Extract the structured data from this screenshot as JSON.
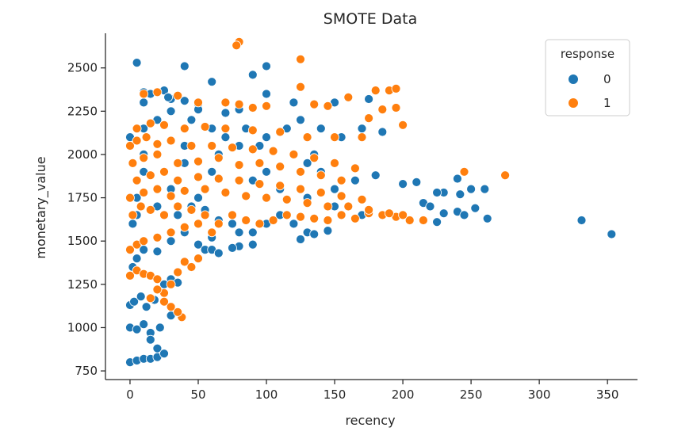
{
  "chart_data": {
    "type": "scatter",
    "title": "SMOTE Data",
    "xlabel": "recency",
    "ylabel": "monetary_value",
    "xlim": [
      -18,
      372
    ],
    "ylim": [
      700,
      2700
    ],
    "xticks": [
      0,
      50,
      100,
      150,
      200,
      250,
      300,
      350
    ],
    "yticks": [
      750,
      1000,
      1250,
      1500,
      1750,
      2000,
      2250,
      2500
    ],
    "grid": false,
    "legend": {
      "title": "response",
      "placement": "top-right"
    },
    "colors": {
      "0": "#1f77b4",
      "1": "#ff7f0e"
    },
    "series": [
      {
        "name": "0",
        "color": "#1f77b4",
        "x": [
          0,
          5,
          10,
          15,
          20,
          20,
          0,
          5,
          10,
          15,
          22,
          25,
          0,
          3,
          8,
          12,
          18,
          25,
          30,
          35,
          0,
          2,
          5,
          10,
          30,
          40,
          50,
          55,
          60,
          2,
          5,
          20,
          35,
          45,
          55,
          65,
          75,
          80,
          90,
          100,
          110,
          120,
          130,
          5,
          30,
          50,
          70,
          90,
          110,
          130,
          150,
          170,
          10,
          40,
          60,
          80,
          100,
          130,
          140,
          150,
          165,
          10,
          40,
          65,
          80,
          95,
          120,
          135,
          150,
          165,
          180,
          0,
          10,
          20,
          30,
          45,
          60,
          70,
          85,
          100,
          115,
          125,
          140,
          155,
          170,
          185,
          10,
          30,
          50,
          80,
          100,
          120,
          150,
          175,
          200,
          210,
          215,
          225,
          230,
          240,
          242,
          250,
          253,
          260,
          262,
          240,
          230,
          245,
          331,
          353,
          220,
          225,
          10,
          25,
          40,
          60,
          70,
          90,
          100,
          5,
          15,
          28,
          50,
          30,
          25,
          15,
          60,
          80,
          65,
          75,
          90,
          125,
          135,
          145,
          40,
          50,
          20
        ],
        "y": [
          800,
          810,
          820,
          820,
          830,
          880,
          1000,
          990,
          1020,
          970,
          1000,
          850,
          1130,
          1150,
          1180,
          1120,
          1160,
          1250,
          1280,
          1260,
          1300,
          1350,
          1400,
          1450,
          1500,
          1550,
          1480,
          1450,
          1520,
          1600,
          1650,
          1700,
          1650,
          1700,
          1680,
          1620,
          1600,
          1550,
          1550,
          1600,
          1650,
          1600,
          1550,
          1750,
          1800,
          1750,
          1780,
          1850,
          1800,
          1750,
          1700,
          1650,
          1900,
          1950,
          1900,
          1850,
          1900,
          1950,
          1900,
          1800,
          1850,
          2000,
          2050,
          2000,
          2050,
          2050,
          2000,
          2000,
          1950,
          1920,
          1880,
          2100,
          2150,
          2200,
          2250,
          2200,
          2150,
          2100,
          2150,
          2100,
          2150,
          2200,
          2150,
          2100,
          2150,
          2130,
          2300,
          2320,
          2280,
          2260,
          2350,
          2300,
          2300,
          2320,
          1830,
          1840,
          1720,
          1610,
          1780,
          1670,
          1770,
          1800,
          1690,
          1800,
          1630,
          1860,
          1660,
          1650,
          1620,
          1540,
          1700,
          1780,
          2360,
          2370,
          2510,
          2420,
          2240,
          2460,
          2510,
          2530,
          2350,
          2330,
          2290,
          1070,
          1200,
          930,
          1450,
          1470,
          1430,
          1460,
          1480,
          1510,
          1540,
          1560,
          2310,
          2260,
          1440
        ]
      },
      {
        "name": "1",
        "color": "#ff7f0e",
        "x": [
          0,
          5,
          10,
          15,
          20,
          25,
          30,
          35,
          40,
          45,
          50,
          0,
          5,
          10,
          20,
          30,
          40,
          50,
          60,
          2,
          8,
          15,
          25,
          35,
          45,
          55,
          65,
          75,
          85,
          95,
          105,
          115,
          125,
          135,
          145,
          155,
          165,
          175,
          185,
          195,
          205,
          215,
          0,
          10,
          20,
          30,
          40,
          55,
          70,
          85,
          100,
          115,
          130,
          145,
          160,
          175,
          190,
          200,
          5,
          15,
          25,
          35,
          50,
          65,
          80,
          95,
          110,
          125,
          140,
          155,
          170,
          2,
          10,
          20,
          35,
          50,
          65,
          80,
          95,
          110,
          125,
          140,
          155,
          0,
          5,
          12,
          20,
          30,
          45,
          60,
          75,
          90,
          105,
          120,
          135,
          150,
          165,
          5,
          15,
          25,
          40,
          55,
          70,
          90,
          110,
          130,
          150,
          170,
          180,
          190,
          195,
          10,
          20,
          35,
          50,
          70,
          80,
          90,
          100,
          125,
          125,
          135,
          145,
          160,
          175,
          185,
          195,
          200,
          245,
          275,
          80,
          78,
          38,
          35,
          30,
          25,
          15,
          20
        ],
        "y": [
          1300,
          1330,
          1310,
          1300,
          1280,
          1200,
          1250,
          1320,
          1380,
          1350,
          1400,
          1450,
          1480,
          1500,
          1520,
          1550,
          1580,
          1600,
          1550,
          1650,
          1700,
          1680,
          1650,
          1700,
          1680,
          1650,
          1600,
          1650,
          1620,
          1600,
          1620,
          1650,
          1640,
          1630,
          1620,
          1650,
          1630,
          1660,
          1650,
          1640,
          1620,
          1620,
          1750,
          1780,
          1800,
          1760,
          1790,
          1800,
          1780,
          1760,
          1750,
          1740,
          1720,
          1700,
          1700,
          1680,
          1660,
          1650,
          1850,
          1880,
          1900,
          1850,
          1870,
          1860,
          1850,
          1830,
          1820,
          1800,
          1780,
          1760,
          1740,
          1950,
          1980,
          2000,
          1950,
          1960,
          1980,
          1940,
          1950,
          1930,
          1900,
          1880,
          1850,
          2050,
          2080,
          2100,
          2060,
          2080,
          2050,
          2050,
          2040,
          2030,
          2020,
          2000,
          1980,
          1950,
          1920,
          2150,
          2180,
          2170,
          2150,
          2160,
          2150,
          2140,
          2130,
          2100,
          2100,
          2100,
          2370,
          2370,
          2380,
          2350,
          2360,
          2340,
          2300,
          2300,
          2290,
          2270,
          2280,
          2550,
          2390,
          2290,
          2280,
          2330,
          2210,
          2260,
          2270,
          2170,
          1900,
          1880,
          2650,
          2630,
          1060,
          1090,
          1120,
          1150,
          1170,
          1220
        ]
      }
    ]
  }
}
